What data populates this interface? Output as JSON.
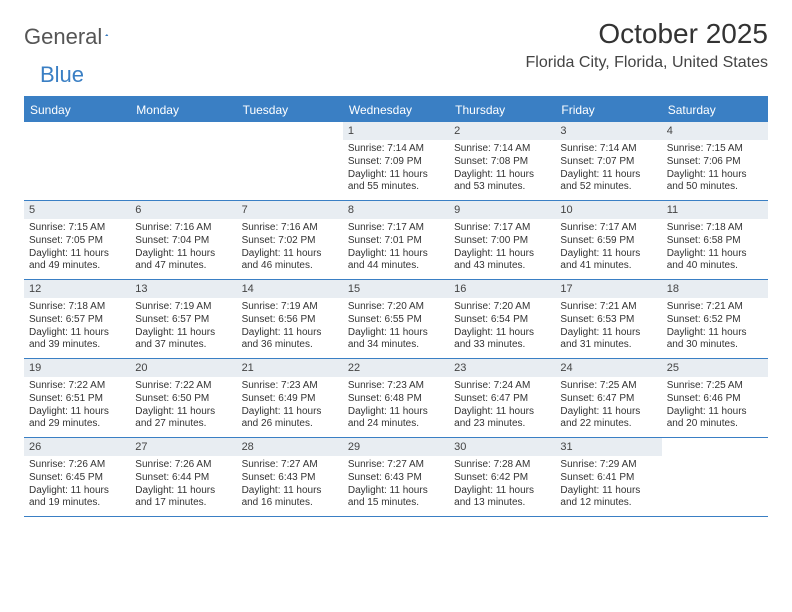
{
  "logo": {
    "word1": "General",
    "word2": "Blue"
  },
  "title": "October 2025",
  "location": "Florida City, Florida, United States",
  "header_bg": "#3a7fc4",
  "daynum_bg": "#e8edf2",
  "dayNames": [
    "Sunday",
    "Monday",
    "Tuesday",
    "Wednesday",
    "Thursday",
    "Friday",
    "Saturday"
  ],
  "weeks": [
    [
      null,
      null,
      null,
      {
        "n": "1",
        "sr": "7:14 AM",
        "ss": "7:09 PM",
        "dl": "11 hours and 55 minutes."
      },
      {
        "n": "2",
        "sr": "7:14 AM",
        "ss": "7:08 PM",
        "dl": "11 hours and 53 minutes."
      },
      {
        "n": "3",
        "sr": "7:14 AM",
        "ss": "7:07 PM",
        "dl": "11 hours and 52 minutes."
      },
      {
        "n": "4",
        "sr": "7:15 AM",
        "ss": "7:06 PM",
        "dl": "11 hours and 50 minutes."
      }
    ],
    [
      {
        "n": "5",
        "sr": "7:15 AM",
        "ss": "7:05 PM",
        "dl": "11 hours and 49 minutes."
      },
      {
        "n": "6",
        "sr": "7:16 AM",
        "ss": "7:04 PM",
        "dl": "11 hours and 47 minutes."
      },
      {
        "n": "7",
        "sr": "7:16 AM",
        "ss": "7:02 PM",
        "dl": "11 hours and 46 minutes."
      },
      {
        "n": "8",
        "sr": "7:17 AM",
        "ss": "7:01 PM",
        "dl": "11 hours and 44 minutes."
      },
      {
        "n": "9",
        "sr": "7:17 AM",
        "ss": "7:00 PM",
        "dl": "11 hours and 43 minutes."
      },
      {
        "n": "10",
        "sr": "7:17 AM",
        "ss": "6:59 PM",
        "dl": "11 hours and 41 minutes."
      },
      {
        "n": "11",
        "sr": "7:18 AM",
        "ss": "6:58 PM",
        "dl": "11 hours and 40 minutes."
      }
    ],
    [
      {
        "n": "12",
        "sr": "7:18 AM",
        "ss": "6:57 PM",
        "dl": "11 hours and 39 minutes."
      },
      {
        "n": "13",
        "sr": "7:19 AM",
        "ss": "6:57 PM",
        "dl": "11 hours and 37 minutes."
      },
      {
        "n": "14",
        "sr": "7:19 AM",
        "ss": "6:56 PM",
        "dl": "11 hours and 36 minutes."
      },
      {
        "n": "15",
        "sr": "7:20 AM",
        "ss": "6:55 PM",
        "dl": "11 hours and 34 minutes."
      },
      {
        "n": "16",
        "sr": "7:20 AM",
        "ss": "6:54 PM",
        "dl": "11 hours and 33 minutes."
      },
      {
        "n": "17",
        "sr": "7:21 AM",
        "ss": "6:53 PM",
        "dl": "11 hours and 31 minutes."
      },
      {
        "n": "18",
        "sr": "7:21 AM",
        "ss": "6:52 PM",
        "dl": "11 hours and 30 minutes."
      }
    ],
    [
      {
        "n": "19",
        "sr": "7:22 AM",
        "ss": "6:51 PM",
        "dl": "11 hours and 29 minutes."
      },
      {
        "n": "20",
        "sr": "7:22 AM",
        "ss": "6:50 PM",
        "dl": "11 hours and 27 minutes."
      },
      {
        "n": "21",
        "sr": "7:23 AM",
        "ss": "6:49 PM",
        "dl": "11 hours and 26 minutes."
      },
      {
        "n": "22",
        "sr": "7:23 AM",
        "ss": "6:48 PM",
        "dl": "11 hours and 24 minutes."
      },
      {
        "n": "23",
        "sr": "7:24 AM",
        "ss": "6:47 PM",
        "dl": "11 hours and 23 minutes."
      },
      {
        "n": "24",
        "sr": "7:25 AM",
        "ss": "6:47 PM",
        "dl": "11 hours and 22 minutes."
      },
      {
        "n": "25",
        "sr": "7:25 AM",
        "ss": "6:46 PM",
        "dl": "11 hours and 20 minutes."
      }
    ],
    [
      {
        "n": "26",
        "sr": "7:26 AM",
        "ss": "6:45 PM",
        "dl": "11 hours and 19 minutes."
      },
      {
        "n": "27",
        "sr": "7:26 AM",
        "ss": "6:44 PM",
        "dl": "11 hours and 17 minutes."
      },
      {
        "n": "28",
        "sr": "7:27 AM",
        "ss": "6:43 PM",
        "dl": "11 hours and 16 minutes."
      },
      {
        "n": "29",
        "sr": "7:27 AM",
        "ss": "6:43 PM",
        "dl": "11 hours and 15 minutes."
      },
      {
        "n": "30",
        "sr": "7:28 AM",
        "ss": "6:42 PM",
        "dl": "11 hours and 13 minutes."
      },
      {
        "n": "31",
        "sr": "7:29 AM",
        "ss": "6:41 PM",
        "dl": "11 hours and 12 minutes."
      },
      null
    ]
  ],
  "labels": {
    "sunrise": "Sunrise:",
    "sunset": "Sunset:",
    "daylight": "Daylight:"
  }
}
